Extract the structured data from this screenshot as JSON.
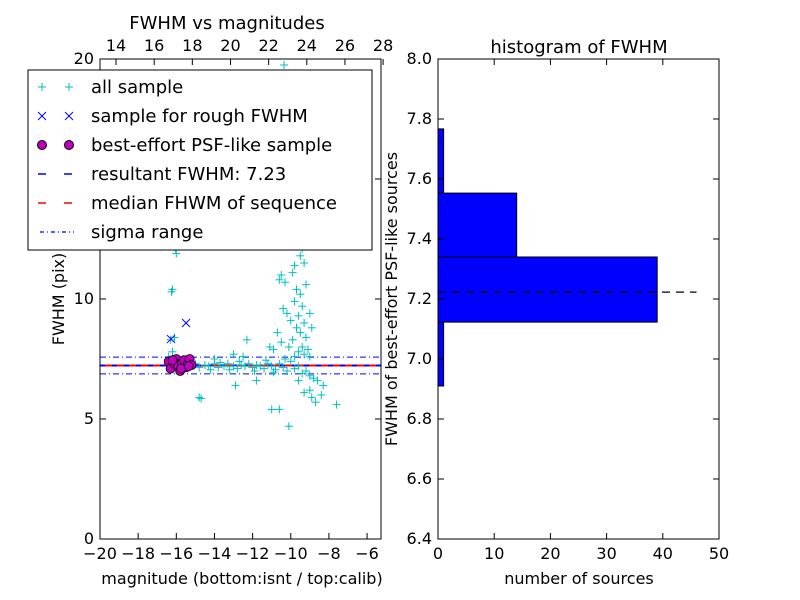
{
  "chart_data": [
    {
      "type": "scatter",
      "title": "FWHM vs magnitudes",
      "xlabel": "magnitude (bottom:isnt / top:calib)",
      "ylabel": "FWHM (pix)",
      "xlim": [
        -20,
        -5.27
      ],
      "ylim": [
        0,
        20
      ],
      "xticks": [
        -20,
        -18,
        -16,
        -14,
        -12,
        -10,
        -8,
        -6
      ],
      "xtick_labels": [
        "−20",
        "−18",
        "−16",
        "−14",
        "−12",
        "−10",
        "−8",
        "−6"
      ],
      "yticks": [
        0,
        5,
        10,
        15,
        20
      ],
      "ytick_labels": [
        "0",
        "5",
        "10",
        "15",
        "20"
      ],
      "top_axis": {
        "offset": 33.16,
        "ticks": [
          14,
          16,
          18,
          20,
          22,
          24,
          26,
          28
        ],
        "tick_labels": [
          "14",
          "16",
          "18",
          "20",
          "22",
          "24",
          "26",
          "28"
        ]
      },
      "legend": {
        "placement": "upper-left",
        "entries": [
          "all sample",
          "sample for rough FWHM",
          "best-effort PSF-like sample",
          "resultant FWHM: 7.23",
          "median FHWM of sequence",
          "sigma range"
        ]
      },
      "colors": {
        "all": "#00bfbf",
        "rough": "#0000ff",
        "best": "#bf00bf",
        "resultant": "#0000ff",
        "median": "#ff0000",
        "sigma": "#0000ff"
      },
      "resultant_fwhm": 7.23,
      "median_fwhm": 7.23,
      "sigma_range": [
        6.88,
        7.58
      ],
      "series": [
        {
          "name": "all sample",
          "points": [
            [
              -10.35,
              19.75
            ],
            [
              -16.2,
              10.4
            ],
            [
              -16.25,
              10.3
            ],
            [
              -16.0,
              11.9
            ],
            [
              -16.05,
              12.1
            ],
            [
              -16.3,
              8.3
            ],
            [
              -16.1,
              8.4
            ],
            [
              -16.4,
              7.6
            ],
            [
              -16.2,
              7.8
            ],
            [
              -14.8,
              5.9
            ],
            [
              -14.7,
              5.85
            ],
            [
              -12.3,
              8.3
            ],
            [
              -13.0,
              7.7
            ],
            [
              -14.0,
              7.5
            ],
            [
              -12.5,
              7.6
            ],
            [
              -10.1,
              4.7
            ],
            [
              -11.0,
              5.4
            ],
            [
              -7.6,
              5.6
            ],
            [
              -8.4,
              6.0
            ],
            [
              -8.7,
              5.7
            ],
            [
              -9.0,
              6.2
            ],
            [
              -9.3,
              6.1
            ],
            [
              -8.3,
              6.4
            ],
            [
              -12.9,
              6.4
            ],
            [
              -11.8,
              6.6
            ],
            [
              -10.6,
              5.4
            ],
            [
              -8.9,
              5.9
            ],
            [
              -9.6,
              6.6
            ],
            [
              -15.2,
              7.2
            ],
            [
              -15.0,
              7.3
            ],
            [
              -14.8,
              7.15
            ],
            [
              -14.5,
              7.25
            ],
            [
              -14.3,
              7.2
            ],
            [
              -14.0,
              7.3
            ],
            [
              -13.8,
              7.15
            ],
            [
              -13.5,
              7.2
            ],
            [
              -13.3,
              7.3
            ],
            [
              -13.0,
              7.2
            ],
            [
              -12.8,
              7.1
            ],
            [
              -12.6,
              7.25
            ],
            [
              -12.4,
              7.2
            ],
            [
              -12.2,
              7.3
            ],
            [
              -12.0,
              7.15
            ],
            [
              -11.8,
              7.25
            ],
            [
              -11.6,
              7.2
            ],
            [
              -11.4,
              7.1
            ],
            [
              -11.2,
              7.3
            ],
            [
              -11.0,
              7.2
            ],
            [
              -10.8,
              7.05
            ],
            [
              -10.6,
              7.3
            ],
            [
              -10.4,
              7.15
            ],
            [
              -10.2,
              7.0
            ],
            [
              -10.0,
              7.4
            ],
            [
              -9.8,
              7.1
            ],
            [
              -9.6,
              7.2
            ],
            [
              -9.4,
              6.9
            ],
            [
              -9.2,
              7.0
            ],
            [
              -9.0,
              6.8
            ],
            [
              -8.8,
              6.7
            ],
            [
              -8.6,
              6.6
            ],
            [
              -13.2,
              7.05
            ],
            [
              -12.7,
              7.4
            ],
            [
              -11.9,
              7.0
            ],
            [
              -11.3,
              7.45
            ],
            [
              -10.9,
              6.95
            ],
            [
              -14.2,
              7.05
            ],
            [
              -13.7,
              7.35
            ],
            [
              -10.6,
              10.8
            ],
            [
              -10.3,
              10.7
            ],
            [
              -10.5,
              11.0
            ],
            [
              -9.9,
              11.1
            ],
            [
              -9.7,
              10.4
            ],
            [
              -9.5,
              10.2
            ],
            [
              -9.8,
              9.9
            ],
            [
              -9.4,
              9.7
            ],
            [
              -9.6,
              9.3
            ],
            [
              -10.0,
              9.1
            ],
            [
              -9.3,
              9.0
            ],
            [
              -9.7,
              8.8
            ],
            [
              -9.5,
              8.6
            ],
            [
              -9.2,
              8.4
            ],
            [
              -9.9,
              8.3
            ],
            [
              -10.1,
              8.0
            ],
            [
              -9.4,
              8.0
            ],
            [
              -9.6,
              7.8
            ],
            [
              -9.1,
              7.9
            ],
            [
              -9.8,
              7.6
            ],
            [
              -9.3,
              7.7
            ],
            [
              -10.3,
              7.5
            ],
            [
              -9.0,
              7.6
            ],
            [
              -10.5,
              8.2
            ],
            [
              -9.5,
              11.8
            ],
            [
              -9.4,
              12.1
            ],
            [
              -9.6,
              12.6
            ],
            [
              -9.5,
              12.9
            ],
            [
              -9.7,
              12.3
            ],
            [
              -9.3,
              11.5
            ],
            [
              -9.8,
              11.4
            ],
            [
              -10.2,
              9.4
            ],
            [
              -10.4,
              9.6
            ],
            [
              -9.2,
              10.6
            ],
            [
              -9.0,
              9.4
            ],
            [
              -8.9,
              8.8
            ],
            [
              -10.7,
              8.6
            ],
            [
              -10.9,
              7.9
            ],
            [
              -11.1,
              8.0
            ],
            [
              -9.4,
              13.2
            ],
            [
              -9.5,
              13.6
            ]
          ]
        },
        {
          "name": "sample for rough FWHM",
          "points": [
            [
              -16.28,
              8.33
            ],
            [
              -15.49,
              9.0
            ]
          ]
        },
        {
          "name": "best-effort PSF-like sample",
          "points": [
            [
              -16.4,
              7.4
            ],
            [
              -16.3,
              7.1
            ],
            [
              -16.1,
              7.3
            ],
            [
              -16.0,
              7.5
            ],
            [
              -15.9,
              7.2
            ],
            [
              -15.8,
              7.0
            ],
            [
              -15.7,
              7.35
            ],
            [
              -15.6,
              7.45
            ],
            [
              -15.5,
              7.15
            ],
            [
              -15.4,
              7.3
            ],
            [
              -15.3,
              7.5
            ],
            [
              -15.2,
              7.25
            ],
            [
              -16.2,
              7.45
            ],
            [
              -15.75,
              7.1
            ],
            [
              -15.35,
              7.2
            ]
          ]
        }
      ]
    },
    {
      "type": "bar",
      "orientation": "horizontal",
      "title": "histogram of FWHM",
      "xlabel": "number of sources",
      "ylabel": "FWHM of best-effort PSF-like sources",
      "xlim": [
        0,
        50
      ],
      "ylim": [
        6.4,
        8.0
      ],
      "xticks": [
        0,
        10,
        20,
        30,
        40,
        50
      ],
      "xtick_labels": [
        "0",
        "10",
        "20",
        "30",
        "40",
        "50"
      ],
      "yticks": [
        6.4,
        6.6,
        6.8,
        7.0,
        7.2,
        7.4,
        7.6,
        7.8,
        8.0
      ],
      "ytick_labels": [
        "6.4",
        "6.6",
        "6.8",
        "7.0",
        "7.2",
        "7.4",
        "7.6",
        "7.8",
        "8.0"
      ],
      "bins": [
        [
          6.91,
          7.123
        ],
        [
          7.123,
          7.34
        ],
        [
          7.34,
          7.553
        ],
        [
          7.553,
          7.767
        ]
      ],
      "values": [
        1,
        39,
        14,
        1
      ],
      "bar_color": "#0000ff",
      "reference_line": {
        "y": 7.223,
        "x_end": 46
      }
    }
  ]
}
